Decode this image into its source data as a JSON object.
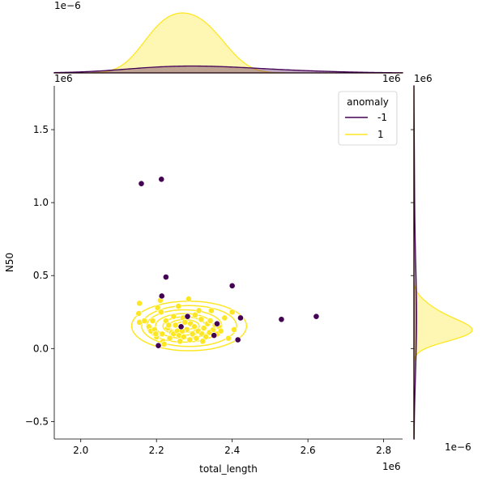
{
  "chart_data": {
    "type": "scatter",
    "subtype": "jointplot with KDE contours and marginal KDE",
    "xlabel": "total_length",
    "ylabel": "N50",
    "x_scale_label": "1e6",
    "y_scale_label": "1e6",
    "top_marginal_scale_label": "1e−6",
    "right_marginal_scale_label": "1e−6",
    "xlim": [
      1.93,
      2.85
    ],
    "ylim": [
      -0.62,
      1.8
    ],
    "xticks": [
      2.0,
      2.2,
      2.4,
      2.6,
      2.8
    ],
    "xtick_labels": [
      "2.0",
      "2.2",
      "2.4",
      "2.6",
      "2.8"
    ],
    "yticks": [
      -0.5,
      0.0,
      0.5,
      1.0,
      1.5
    ],
    "ytick_labels": [
      "−0.5",
      "0.0",
      "0.5",
      "1.0",
      "1.5"
    ],
    "legend": {
      "title": "anomaly",
      "placement": "top-right",
      "entries": [
        {
          "label": "-1",
          "color": "#440154"
        },
        {
          "label": "1",
          "color": "#fde725"
        }
      ]
    },
    "series": [
      {
        "name": "-1",
        "color": "#440154",
        "points": [
          [
            2.16,
            1.13
          ],
          [
            2.213,
            1.16
          ],
          [
            2.225,
            0.49
          ],
          [
            2.214,
            0.36
          ],
          [
            2.4,
            0.43
          ],
          [
            2.53,
            0.2
          ],
          [
            2.622,
            0.22
          ],
          [
            2.422,
            0.21
          ],
          [
            2.415,
            0.06
          ],
          [
            2.36,
            0.17
          ],
          [
            2.205,
            0.02
          ],
          [
            2.282,
            0.22
          ],
          [
            2.352,
            0.09
          ],
          [
            2.265,
            0.15
          ]
        ]
      },
      {
        "name": "1",
        "color": "#fde725",
        "points": [
          [
            2.155,
            0.31
          ],
          [
            2.153,
            0.24
          ],
          [
            2.155,
            0.18
          ],
          [
            2.168,
            0.19
          ],
          [
            2.18,
            0.15
          ],
          [
            2.185,
            0.12
          ],
          [
            2.19,
            0.19
          ],
          [
            2.195,
            0.13
          ],
          [
            2.2,
            0.08
          ],
          [
            2.203,
            0.28
          ],
          [
            2.21,
            0.33
          ],
          [
            2.212,
            0.25
          ],
          [
            2.215,
            0.1
          ],
          [
            2.217,
            0.05
          ],
          [
            2.22,
            0.03
          ],
          [
            2.225,
            0.19
          ],
          [
            2.23,
            0.14
          ],
          [
            2.235,
            0.07
          ],
          [
            2.24,
            0.11
          ],
          [
            2.245,
            0.1
          ],
          [
            2.25,
            0.16
          ],
          [
            2.255,
            0.12
          ],
          [
            2.26,
            0.09
          ],
          [
            2.262,
            0.05
          ],
          [
            2.27,
            0.21
          ],
          [
            2.272,
            0.08
          ],
          [
            2.28,
            0.13
          ],
          [
            2.285,
            0.34
          ],
          [
            2.29,
            0.17
          ],
          [
            2.295,
            0.1
          ],
          [
            2.3,
            0.15
          ],
          [
            2.305,
            0.07
          ],
          [
            2.31,
            0.12
          ],
          [
            2.312,
            0.26
          ],
          [
            2.318,
            0.2
          ],
          [
            2.32,
            0.1
          ],
          [
            2.325,
            0.14
          ],
          [
            2.33,
            0.08
          ],
          [
            2.335,
            0.17
          ],
          [
            2.34,
            0.11
          ],
          [
            2.345,
            0.26
          ],
          [
            2.35,
            0.13
          ],
          [
            2.355,
            0.16
          ],
          [
            2.36,
            0.1
          ],
          [
            2.365,
            0.15
          ],
          [
            2.37,
            0.12
          ],
          [
            2.38,
            0.21
          ],
          [
            2.39,
            0.07
          ],
          [
            2.4,
            0.25
          ],
          [
            2.405,
            0.13
          ],
          [
            2.275,
            0.18
          ],
          [
            2.288,
            0.06
          ],
          [
            2.245,
            0.22
          ],
          [
            2.258,
            0.29
          ],
          [
            2.232,
            0.16
          ],
          [
            2.302,
            0.23
          ],
          [
            2.322,
            0.05
          ],
          [
            2.342,
            0.19
          ],
          [
            2.268,
            0.12
          ],
          [
            2.198,
            0.1
          ]
        ]
      }
    ],
    "kde_contours_series": "1",
    "marginal_top": {
      "series": [
        {
          "name": "1",
          "color": "#fde725",
          "fill_opacity": 0.35
        },
        {
          "name": "-1",
          "color": "#440154",
          "fill_opacity": 0.35
        }
      ]
    },
    "marginal_right": {
      "series": [
        {
          "name": "1",
          "color": "#fde725",
          "fill_opacity": 0.35
        },
        {
          "name": "-1",
          "color": "#440154",
          "fill_opacity": 0.35
        }
      ]
    }
  }
}
